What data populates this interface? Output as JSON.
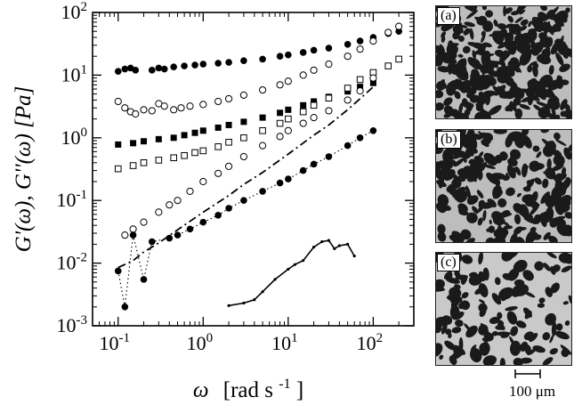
{
  "chart_data": {
    "type": "scatter",
    "xscale": "log",
    "yscale": "log",
    "xlim": [
      0.05,
      300
    ],
    "ylim": [
      0.001,
      100
    ],
    "xticks": [
      {
        "v": 0.1,
        "m": "10",
        "e": "-1"
      },
      {
        "v": 1,
        "m": "10",
        "e": "0"
      },
      {
        "v": 10,
        "m": "10",
        "e": "1"
      },
      {
        "v": 100,
        "m": "10",
        "e": "2"
      }
    ],
    "yticks": [
      {
        "v": 0.001,
        "m": "10",
        "e": "-3"
      },
      {
        "v": 0.01,
        "m": "10",
        "e": "-2"
      },
      {
        "v": 0.1,
        "m": "10",
        "e": "-1"
      },
      {
        "v": 1,
        "m": "10",
        "e": "0"
      },
      {
        "v": 10,
        "m": "10",
        "e": "1"
      },
      {
        "v": 100,
        "m": "10",
        "e": "2"
      }
    ],
    "xlabel": {
      "sym": "ω",
      "unit": "[rad s",
      "exp": "-1",
      "close": "]"
    },
    "ylabel": "G'(ω), G''(ω)  [Pa]",
    "grid": false,
    "series": [
      {
        "marker": "filled-circle",
        "line": "none",
        "points": [
          [
            0.1,
            11.5
          ],
          [
            0.12,
            12.5
          ],
          [
            0.14,
            13
          ],
          [
            0.16,
            12
          ],
          [
            0.25,
            12
          ],
          [
            0.3,
            13
          ],
          [
            0.35,
            12.5
          ],
          [
            0.45,
            13.5
          ],
          [
            0.6,
            14
          ],
          [
            0.8,
            14.5
          ],
          [
            1,
            15
          ],
          [
            1.5,
            15.5
          ],
          [
            2,
            16
          ],
          [
            3,
            17
          ],
          [
            5,
            18
          ],
          [
            8,
            20
          ],
          [
            10,
            21
          ],
          [
            15,
            23
          ],
          [
            20,
            25
          ],
          [
            30,
            27
          ],
          [
            50,
            31
          ],
          [
            70,
            35
          ],
          [
            100,
            40
          ],
          [
            150,
            46
          ],
          [
            200,
            50
          ]
        ]
      },
      {
        "marker": "open-circle",
        "line": "none",
        "points": [
          [
            0.1,
            3.8
          ],
          [
            0.12,
            3
          ],
          [
            0.14,
            2.6
          ],
          [
            0.16,
            2.4
          ],
          [
            0.2,
            2.8
          ],
          [
            0.25,
            2.7
          ],
          [
            0.3,
            3.5
          ],
          [
            0.35,
            3.2
          ],
          [
            0.45,
            2.8
          ],
          [
            0.55,
            3
          ],
          [
            0.7,
            3.2
          ],
          [
            1,
            3.4
          ],
          [
            1.5,
            3.8
          ],
          [
            2,
            4.2
          ],
          [
            3,
            4.8
          ],
          [
            5,
            5.8
          ],
          [
            8,
            7
          ],
          [
            10,
            8
          ],
          [
            15,
            10
          ],
          [
            20,
            12
          ],
          [
            30,
            15
          ],
          [
            50,
            20
          ],
          [
            70,
            26
          ],
          [
            100,
            35
          ],
          [
            150,
            48
          ],
          [
            200,
            60
          ]
        ]
      },
      {
        "marker": "filled-square",
        "line": "none",
        "points": [
          [
            0.1,
            0.78
          ],
          [
            0.15,
            0.82
          ],
          [
            0.2,
            0.88
          ],
          [
            0.3,
            0.95
          ],
          [
            0.45,
            1.0
          ],
          [
            0.6,
            1.1
          ],
          [
            0.8,
            1.2
          ],
          [
            1,
            1.3
          ],
          [
            1.5,
            1.45
          ],
          [
            2,
            1.6
          ],
          [
            3,
            1.8
          ],
          [
            5,
            2.1
          ],
          [
            8,
            2.5
          ],
          [
            10,
            2.8
          ],
          [
            15,
            3.3
          ],
          [
            20,
            3.8
          ],
          [
            30,
            4.5
          ],
          [
            50,
            5.5
          ],
          [
            70,
            6.5
          ],
          [
            100,
            7.5
          ]
        ]
      },
      {
        "marker": "open-square",
        "line": "none",
        "points": [
          [
            0.1,
            0.32
          ],
          [
            0.15,
            0.36
          ],
          [
            0.2,
            0.4
          ],
          [
            0.3,
            0.44
          ],
          [
            0.45,
            0.48
          ],
          [
            0.6,
            0.52
          ],
          [
            0.8,
            0.58
          ],
          [
            1,
            0.62
          ],
          [
            1.5,
            0.72
          ],
          [
            2,
            0.85
          ],
          [
            3,
            1.0
          ],
          [
            5,
            1.3
          ],
          [
            8,
            1.7
          ],
          [
            10,
            2.0
          ],
          [
            15,
            2.6
          ],
          [
            20,
            3.3
          ],
          [
            30,
            4.3
          ],
          [
            50,
            6.2
          ],
          [
            70,
            8.5
          ],
          [
            100,
            11
          ],
          [
            150,
            14
          ],
          [
            200,
            18
          ]
        ]
      },
      {
        "marker": "open-circle",
        "line": "none",
        "points": [
          [
            0.12,
            0.028
          ],
          [
            0.15,
            0.035
          ],
          [
            0.2,
            0.045
          ],
          [
            0.3,
            0.065
          ],
          [
            0.4,
            0.085
          ],
          [
            0.5,
            0.1
          ],
          [
            0.7,
            0.14
          ],
          [
            1,
            0.2
          ],
          [
            1.5,
            0.27
          ],
          [
            2,
            0.35
          ],
          [
            3,
            0.5
          ],
          [
            5,
            0.75
          ],
          [
            8,
            1.05
          ],
          [
            10,
            1.3
          ],
          [
            15,
            1.7
          ],
          [
            20,
            2.1
          ],
          [
            30,
            2.7
          ],
          [
            50,
            4
          ],
          [
            70,
            5.6
          ],
          [
            100,
            9
          ]
        ]
      },
      {
        "marker": "none",
        "line": "dash-dot",
        "points": [
          [
            0.1,
            0.0085
          ],
          [
            0.15,
            0.011
          ],
          [
            0.2,
            0.015
          ],
          [
            0.3,
            0.021
          ],
          [
            0.5,
            0.034
          ],
          [
            1,
            0.065
          ],
          [
            2,
            0.12
          ],
          [
            3,
            0.18
          ],
          [
            5,
            0.28
          ],
          [
            10,
            0.55
          ],
          [
            20,
            1.1
          ],
          [
            30,
            1.6
          ],
          [
            50,
            2.8
          ],
          [
            70,
            4.2
          ],
          [
            100,
            6.5
          ]
        ]
      },
      {
        "marker": "filled-circle",
        "line": "dotted",
        "points": [
          [
            0.1,
            0.0075
          ],
          [
            0.12,
            0.002
          ],
          [
            0.15,
            0.028
          ],
          [
            0.2,
            0.0055
          ],
          [
            0.25,
            0.022
          ],
          [
            0.4,
            0.025
          ],
          [
            0.5,
            0.028
          ],
          [
            0.7,
            0.035
          ],
          [
            1,
            0.045
          ],
          [
            1.5,
            0.058
          ],
          [
            2,
            0.075
          ],
          [
            3,
            0.1
          ],
          [
            5,
            0.14
          ],
          [
            8,
            0.19
          ],
          [
            10,
            0.22
          ],
          [
            15,
            0.3
          ],
          [
            20,
            0.38
          ],
          [
            30,
            0.5
          ],
          [
            50,
            0.75
          ],
          [
            70,
            1.0
          ],
          [
            100,
            1.3
          ]
        ]
      },
      {
        "marker": "none",
        "line": "solid",
        "points": [
          [
            2,
            0.0021
          ],
          [
            3,
            0.0023
          ],
          [
            4,
            0.0026
          ],
          [
            5,
            0.0035
          ],
          [
            7,
            0.0055
          ],
          [
            10,
            0.008
          ],
          [
            12,
            0.0095
          ],
          [
            15,
            0.011
          ],
          [
            20,
            0.018
          ],
          [
            25,
            0.022
          ],
          [
            30,
            0.023
          ],
          [
            35,
            0.017
          ],
          [
            40,
            0.019
          ],
          [
            50,
            0.02
          ],
          [
            60,
            0.013
          ]
        ]
      }
    ]
  },
  "micrographs": {
    "panels": [
      {
        "label": "(a)",
        "density": 0.58,
        "seed": 11
      },
      {
        "label": "(b)",
        "density": 0.44,
        "seed": 23
      },
      {
        "label": "(c)",
        "density": 0.26,
        "seed": 37
      }
    ],
    "scale_label": "100 μm"
  }
}
